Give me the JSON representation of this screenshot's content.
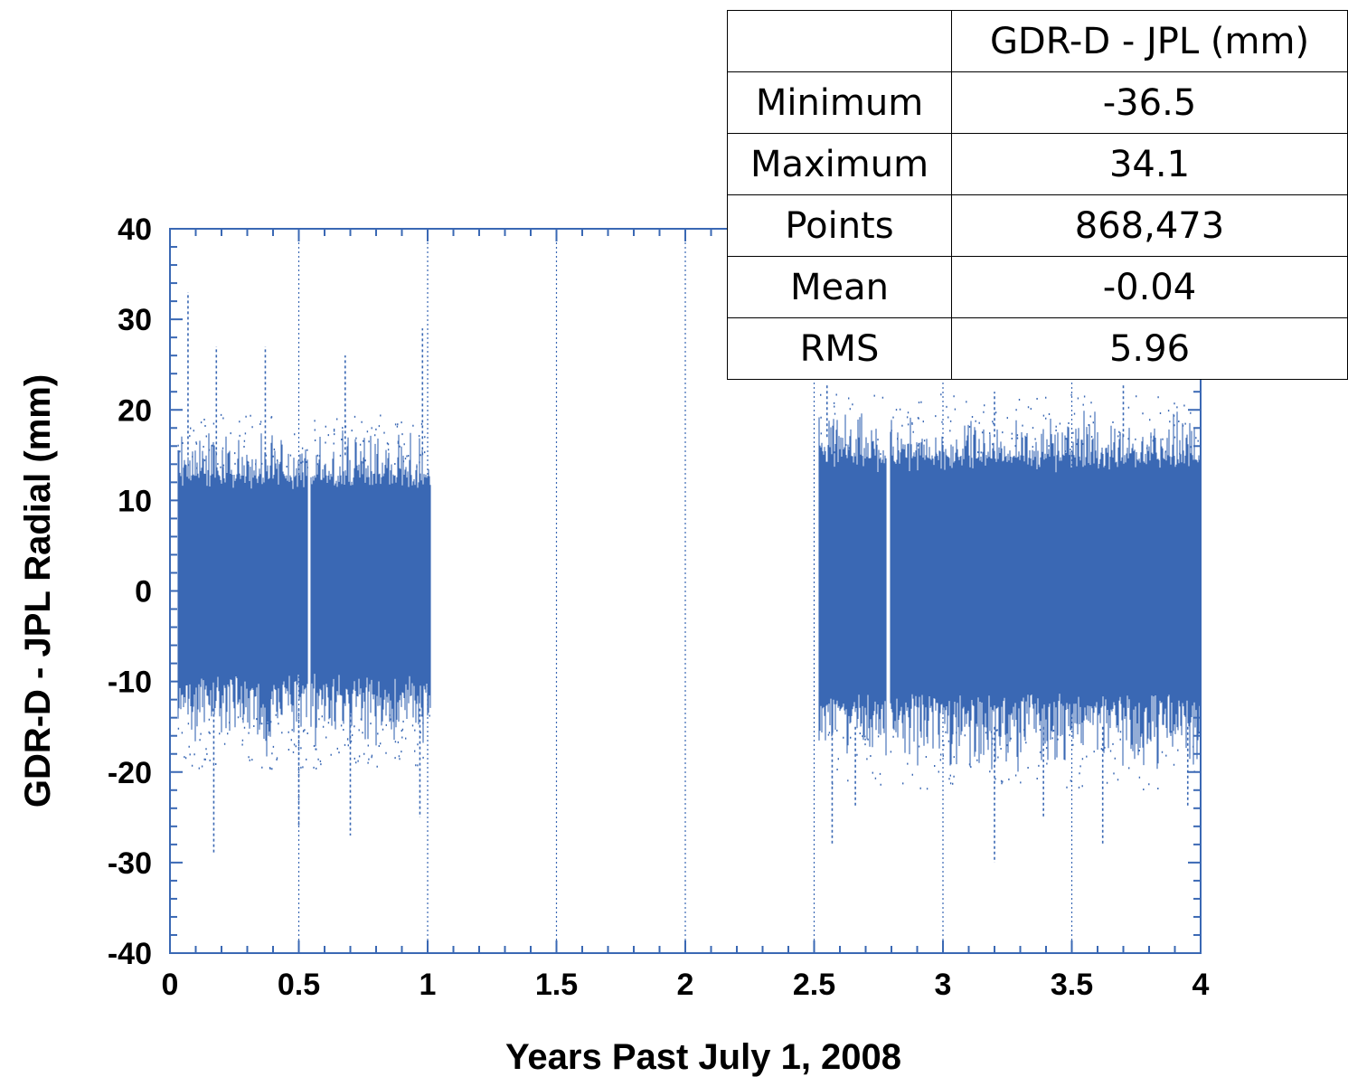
{
  "chart_data": {
    "type": "scatter",
    "xlabel": "Years Past July 1, 2008",
    "ylabel": "GDR-D - JPL Radial (mm)",
    "xlim": [
      0,
      4
    ],
    "ylim": [
      -40,
      40
    ],
    "x_ticks": [
      0,
      0.5,
      1,
      1.5,
      2,
      2.5,
      3,
      3.5,
      4
    ],
    "x_tick_labels": [
      "0",
      "0.5",
      "1",
      "1.5",
      "2",
      "2.5",
      "3",
      "3.5",
      "4"
    ],
    "y_ticks": [
      40,
      30,
      20,
      10,
      0,
      -10,
      -20,
      -30,
      -40
    ],
    "y_tick_labels": [
      "40",
      "30",
      "20",
      "10",
      "0",
      "-10",
      "-20",
      "-30",
      "-40"
    ],
    "grid": "vertical dotted lines at major x ticks",
    "color": "#3a68b4",
    "series": [
      {
        "x_range": [
          0.03,
          1.01
        ],
        "core_band": [
          -9,
          11
        ],
        "typical_envelope": [
          -17,
          17
        ],
        "extreme_points": [
          {
            "x": 0.07,
            "y": 33
          },
          {
            "x": 0.17,
            "y": -29
          },
          {
            "x": 0.18,
            "y": 27
          },
          {
            "x": 0.37,
            "y": 27
          },
          {
            "x": 0.5,
            "y": -26
          },
          {
            "x": 0.68,
            "y": 26
          },
          {
            "x": 0.7,
            "y": -27
          },
          {
            "x": 0.98,
            "y": 29
          },
          {
            "x": 0.97,
            "y": -25
          }
        ]
      },
      {
        "x_range": [
          2.52,
          4.0
        ],
        "core_band": [
          -11,
          13
        ],
        "typical_envelope": [
          -19,
          19
        ],
        "extreme_points": [
          {
            "x": 2.55,
            "y": 23
          },
          {
            "x": 2.57,
            "y": -28
          },
          {
            "x": 2.66,
            "y": -24
          },
          {
            "x": 3.2,
            "y": 22
          },
          {
            "x": 3.2,
            "y": -30
          },
          {
            "x": 3.39,
            "y": -25
          },
          {
            "x": 3.7,
            "y": 23
          },
          {
            "x": 3.62,
            "y": -28
          },
          {
            "x": 3.95,
            "y": -24
          }
        ]
      }
    ],
    "gaps": [
      {
        "x_range": [
          0.535,
          0.545
        ]
      },
      {
        "x_range": [
          2.78,
          2.795
        ]
      }
    ]
  },
  "stats_table": {
    "header": [
      "",
      "GDR-D - JPL (mm)"
    ],
    "rows": [
      {
        "label": "Minimum",
        "value": "-36.5"
      },
      {
        "label": "Maximum",
        "value": "34.1"
      },
      {
        "label": "Points",
        "value": "868,473"
      },
      {
        "label": "Mean",
        "value": "-0.04"
      },
      {
        "label": "RMS",
        "value": "5.96"
      }
    ]
  }
}
